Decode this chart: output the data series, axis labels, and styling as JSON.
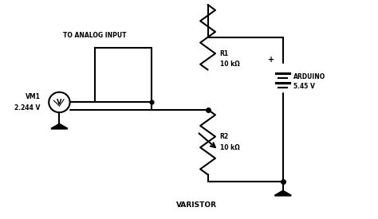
{
  "bg_color": "#ffffff",
  "line_color": "#000000",
  "lw": 1.5,
  "title": "",
  "labels": {
    "analog_input": "TO ANALOG INPUT",
    "vm1_label": "VM1",
    "vm1_val": "2.244 V",
    "r1_label": "R1",
    "r1_val": "10 kΩ",
    "r2_label": "R2",
    "r2_val": "10 kΩ",
    "arduino_label": "ARDUINO",
    "arduino_val": "5.45 V",
    "varistor": "VARISTOR",
    "v_meter": "V",
    "plus": "+"
  }
}
